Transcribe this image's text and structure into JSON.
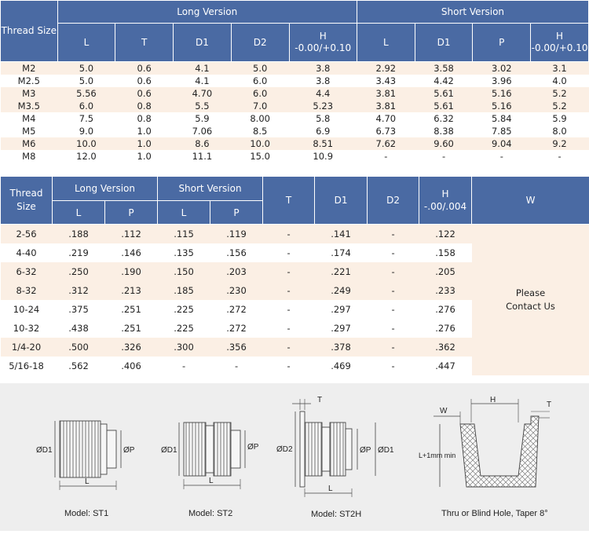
{
  "metric_table": {
    "header": {
      "thread_size": "Thread Size",
      "long_version": "Long Version",
      "short_version": "Short Version",
      "long_cols": [
        "L",
        "T",
        "D1",
        "D2",
        "H\n-0.00/+0.10"
      ],
      "short_cols": [
        "L",
        "D1",
        "P",
        "H\n-0.00/+0.10"
      ]
    },
    "rows": [
      [
        "M2",
        "5.0",
        "0.6",
        "4.1",
        "5.0",
        "3.8",
        "2.92",
        "3.58",
        "3.02",
        "3.1"
      ],
      [
        "M2.5",
        "5.0",
        "0.6",
        "4.1",
        "6.0",
        "3.8",
        "3.43",
        "4.42",
        "3.96",
        "4.0"
      ],
      [
        "M3",
        "5.56",
        "0.6",
        "4.70",
        "6.0",
        "4.4",
        "3.81",
        "5.61",
        "5.16",
        "5.2"
      ],
      [
        "M3.5",
        "6.0",
        "0.8",
        "5.5",
        "7.0",
        "5.23",
        "3.81",
        "5.61",
        "5.16",
        "5.2"
      ],
      [
        "M4",
        "7.5",
        "0.8",
        "5.9",
        "8.00",
        "5.8",
        "4.70",
        "6.32",
        "5.84",
        "5.9"
      ],
      [
        "M5",
        "9.0",
        "1.0",
        "7.06",
        "8.5",
        "6.9",
        "6.73",
        "8.38",
        "7.85",
        "8.0"
      ],
      [
        "M6",
        "10.0",
        "1.0",
        "8.6",
        "10.0",
        "8.51",
        "7.62",
        "9.60",
        "9.04",
        "9.2"
      ],
      [
        "M8",
        "12.0",
        "1.0",
        "11.1",
        "15.0",
        "10.9",
        "-",
        "-",
        "-",
        "-"
      ]
    ]
  },
  "imperial_table": {
    "header": {
      "thread_size": "Thread Size",
      "long_version": "Long Version",
      "short_version": "Short Version",
      "long_cols": [
        "L",
        "P"
      ],
      "short_cols": [
        "L",
        "P"
      ],
      "t": "T",
      "d1": "D1",
      "d2": "D2",
      "h": "H\n-.00/.004",
      "w": "W"
    },
    "rows": [
      [
        "2-56",
        ".188",
        ".112",
        ".115",
        ".119",
        "-",
        ".141",
        "-",
        ".122"
      ],
      [
        "4-40",
        ".219",
        ".146",
        ".135",
        ".156",
        "-",
        ".174",
        "-",
        ".158"
      ],
      [
        "6-32",
        ".250",
        ".190",
        ".150",
        ".203",
        "-",
        ".221",
        "-",
        ".205"
      ],
      [
        "8-32",
        ".312",
        ".213",
        ".185",
        ".230",
        "-",
        ".249",
        "-",
        ".233"
      ],
      [
        "10-24",
        ".375",
        ".251",
        ".225",
        ".272",
        "-",
        ".297",
        "-",
        ".276"
      ],
      [
        "10-32",
        ".438",
        ".251",
        ".225",
        ".272",
        "-",
        ".297",
        "-",
        ".276"
      ],
      [
        "1/4-20",
        ".500",
        ".326",
        ".300",
        ".356",
        "-",
        ".378",
        "-",
        ".362"
      ],
      [
        "5/16-18",
        ".562",
        ".406",
        "-",
        "-",
        "-",
        ".469",
        "-",
        ".447"
      ]
    ],
    "w_value": "Please Contact Us"
  },
  "diagrams": {
    "st1": {
      "caption": "Model: ST1",
      "labels": [
        "ØD1",
        "ØP",
        "L"
      ]
    },
    "st2": {
      "caption": "Model: ST2",
      "labels": [
        "ØD1",
        "ØP",
        "L"
      ]
    },
    "st2h": {
      "caption": "Model: ST2H",
      "labels": [
        "T",
        "ØD2",
        "ØP",
        "ØD1",
        "L"
      ]
    },
    "hole": {
      "caption": "Thru or Blind Hole, Taper 8°",
      "labels": [
        "W",
        "H",
        "T",
        "L+1mm min"
      ]
    }
  }
}
